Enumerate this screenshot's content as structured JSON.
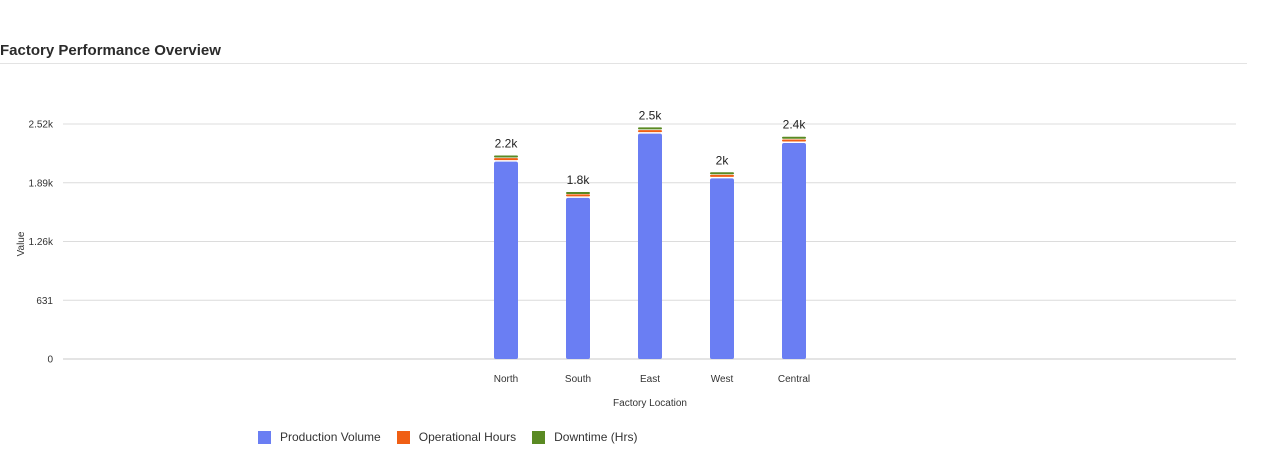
{
  "page": {
    "title": "Factory Performance Overview"
  },
  "chart_data": {
    "type": "bar",
    "stacked": true,
    "categories": [
      "North",
      "South",
      "East",
      "West",
      "Central"
    ],
    "xlabel": "Factory Location",
    "ylabel": "Value",
    "ylim": [
      0,
      2524
    ],
    "yticks": [
      0,
      631,
      1262,
      1893,
      2524
    ],
    "ytick_labels": [
      "0",
      "631",
      "1.26k",
      "1.89k",
      "2.52k"
    ],
    "series": [
      {
        "name": "Production Volume",
        "color": "#6a7ef3",
        "values": [
          2120,
          1730,
          2420,
          1940,
          2320
        ]
      },
      {
        "name": "Operational Hours",
        "color": "#f05f14",
        "values": [
          28,
          26,
          30,
          28,
          30
        ]
      },
      {
        "name": "Downtime (Hrs)",
        "color": "#5a8a23",
        "values": [
          14,
          12,
          16,
          14,
          16
        ]
      }
    ],
    "totals": [
      2162,
      1768,
      2466,
      1982,
      2366
    ],
    "total_labels": [
      "2.2k",
      "1.8k",
      "2.5k",
      "2k",
      "2.4k"
    ],
    "grid": true,
    "legend_position": "bottom"
  }
}
